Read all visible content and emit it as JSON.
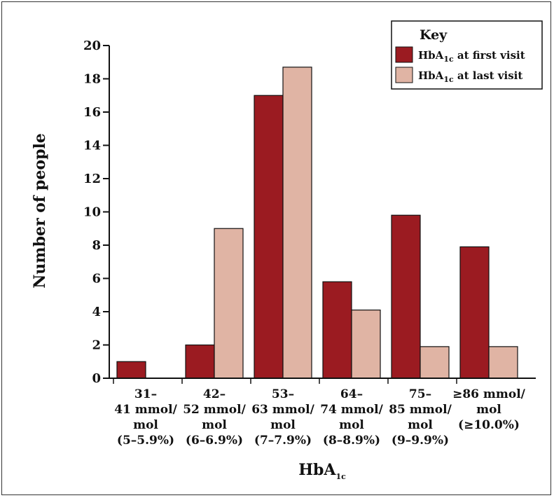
{
  "chart_data": {
    "type": "bar",
    "xlabel": "HbA",
    "xlabel_sub": "1c",
    "ylabel": "Number of people",
    "ylim": [
      0,
      20
    ],
    "yticks": [
      0,
      2,
      4,
      6,
      8,
      10,
      12,
      14,
      16,
      18,
      20
    ],
    "grid": false,
    "legend_position": "top-right",
    "categories": [
      [
        "31–",
        "41 mmol/",
        "mol",
        "(5–5.9%)"
      ],
      [
        "42–",
        "52 mmol/",
        "mol",
        "(6–6.9%)"
      ],
      [
        "53–",
        "63 mmol/",
        "mol",
        "(7–7.9%)"
      ],
      [
        "64–",
        "74 mmol/",
        "mol",
        "(8–8.9%)"
      ],
      [
        "75–",
        "85 mmol/",
        "mol",
        "(9–9.9%)"
      ],
      [
        "≥86 mmol/",
        "mol",
        "(≥10.0%)"
      ]
    ],
    "legend": {
      "title": "Key",
      "entries": [
        {
          "prefix": "HbA",
          "sub": "1c",
          "suffix": " at first visit",
          "color": "#9b1b21"
        },
        {
          "prefix": "HbA",
          "sub": "1c",
          "suffix": " at last visit",
          "color": "#e0b4a4"
        }
      ]
    },
    "series": [
      {
        "color": "#9b1b21",
        "values": [
          1,
          2,
          17,
          5.8,
          9.8,
          7.9
        ]
      },
      {
        "color": "#e0b4a4",
        "values": [
          0,
          9,
          18.7,
          4.1,
          1.9,
          1.9
        ]
      }
    ]
  }
}
